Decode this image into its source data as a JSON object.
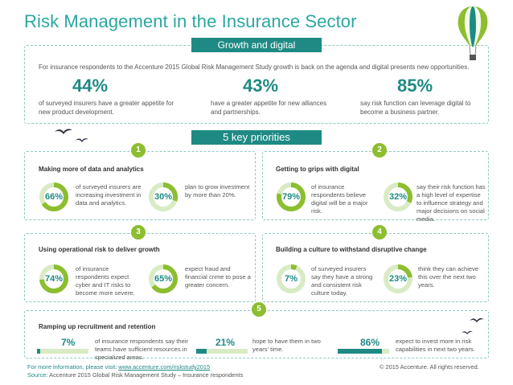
{
  "title": "Risk Management in the Insurance Sector",
  "growth": {
    "pill": "Growth and digital",
    "intro": "For insurance respondents to the Accenture 2015 Global Risk Management Study growth is back on the agenda and digital presents new opportunities.",
    "stats": [
      {
        "value": "44%",
        "text": "of surveyed insurers have a greater appetite for new product development."
      },
      {
        "value": "43%",
        "text": "have a greater appetite for new alliances and partnerships."
      },
      {
        "value": "85%",
        "text": "say risk function can leverage digital to become a business partner."
      }
    ]
  },
  "priorities_pill": "5 key priorities",
  "sections": [
    {
      "number": "1",
      "title": "Making more of data and analytics",
      "items": [
        {
          "value": "66%",
          "pct": 66,
          "text": "of surveyed insurers are increasing investment in data and analytics."
        },
        {
          "value": "30%",
          "pct": 30,
          "text": "plan to grow investment by more than 20%."
        }
      ]
    },
    {
      "number": "2",
      "title": "Getting to grips with digital",
      "items": [
        {
          "value": "79%",
          "pct": 79,
          "text": "of insurance respondents believe digital will be a major risk."
        },
        {
          "value": "32%",
          "pct": 32,
          "text": "say their risk function has a high level of expertise to influence strategy and major decisions on social media."
        }
      ]
    },
    {
      "number": "3",
      "title": "Using operational risk to deliver growth",
      "items": [
        {
          "value": "74%",
          "pct": 74,
          "text": "of insurance respondents expect cyber and IT risks to become more severe."
        },
        {
          "value": "65%",
          "pct": 65,
          "text": "expect fraud and financial crime to pose a greater concern."
        }
      ]
    },
    {
      "number": "4",
      "title": "Building a culture to withstand disruptive change",
      "items": [
        {
          "value": "7%",
          "pct": 7,
          "text": "of surveyed insurers say they have a strong and consistent risk culture today."
        },
        {
          "value": "23%",
          "pct": 23,
          "text": "think they can achieve this over the next two years."
        }
      ]
    },
    {
      "number": "5",
      "title": "Ramping up recruitment and retention",
      "items": [
        {
          "value": "7%",
          "pct": 7,
          "text": "of insurance respondents say their teams have sufficient resources in specialized areas."
        },
        {
          "value": "21%",
          "pct": 21,
          "text": "hope to have them in two years' time."
        },
        {
          "value": "86%",
          "pct": 86,
          "text": "expect to invest more in risk capabilities in next two years."
        }
      ]
    }
  ],
  "footer": {
    "more_info": "For more information, please visit:",
    "link": "www.accenture.com/riskstudy2015",
    "source_label": "Source:",
    "source": "Accenture 2015 Global Risk Management Study – Insurance respondents",
    "copyright": "© 2015 Accenture. All rights reserved."
  },
  "colors": {
    "teal": "#1f8a84",
    "light_teal": "#2ba7a0",
    "green": "#8cbe2f",
    "light_green": "#d9ebc4"
  },
  "icons": [
    "hot-air-balloon-icon",
    "bird-icon"
  ]
}
